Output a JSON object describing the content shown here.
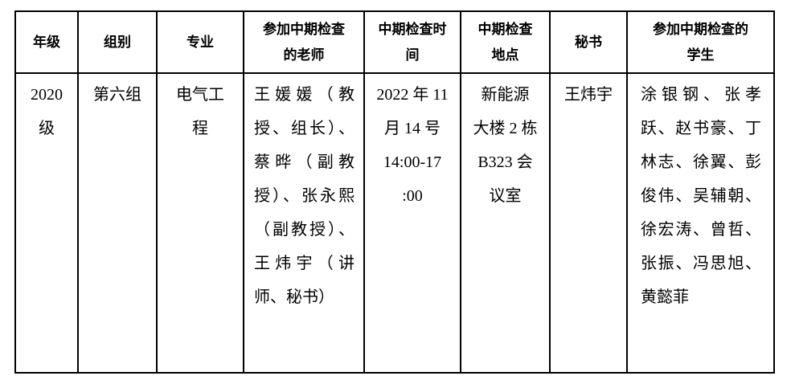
{
  "table": {
    "headers": [
      {
        "label": "年级"
      },
      {
        "label": "组别"
      },
      {
        "label": "专业"
      },
      {
        "label": "参加中期检查\n的老师"
      },
      {
        "label": "中期检查时\n间"
      },
      {
        "label": "中期检查\n地点"
      },
      {
        "label": "秘书"
      },
      {
        "label": "参加中期检查的\n学生"
      }
    ],
    "row": {
      "grade": "2020\n级",
      "group": "第六组",
      "major": "电气工\n程",
      "teachers": "王媛媛（教授、组长）、蔡晔（副教授）、张永熙（副教授）、王炜宇（讲师、秘书）",
      "time": "2022 年 11\n月 14 号\n14:00-17\n:00",
      "location": "新能源\n大楼 2 栋\nB323 会\n议室",
      "secretary": "王炜宇",
      "students": "涂银钢、张孝跃、赵书豪、丁林志、徐翼、彭俊伟、吴辅朝、徐宏涛、曾哲、张振、冯思旭、黄懿菲"
    }
  }
}
